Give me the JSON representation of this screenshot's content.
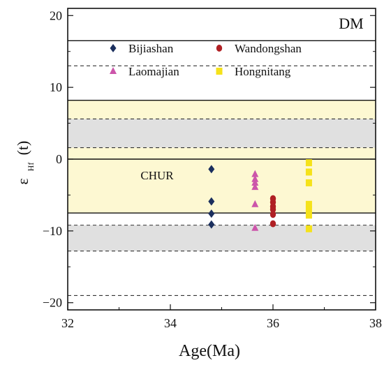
{
  "chart_data": {
    "type": "scatter",
    "title": "",
    "xlabel": "Age(Ma)",
    "ylabel_main": "ε",
    "ylabel_sub": "Hf",
    "ylabel_tail": "(t)",
    "xlim": [
      32,
      38
    ],
    "ylim": [
      -21,
      21
    ],
    "x_ticks": [
      32,
      34,
      36,
      38
    ],
    "y_ticks": [
      -20,
      -10,
      0,
      10,
      20
    ],
    "y_tick_labels": [
      "−20",
      "−10",
      "0",
      "10",
      "20"
    ],
    "grid": false,
    "legend_position": "top",
    "reference_labels": {
      "dm": "DM",
      "chur": "CHUR"
    },
    "bands": [
      {
        "y0": 0,
        "y1": 8.2,
        "color": "#fdf8d2"
      },
      {
        "y0": -7.5,
        "y1": 0,
        "color": "#fdf8d2"
      },
      {
        "y0": 1.6,
        "y1": 5.6,
        "color": "#e0e0e0"
      },
      {
        "y0": -12.8,
        "y1": -9.2,
        "color": "#e0e0e0"
      }
    ],
    "solid_lines": [
      16.5,
      8.2,
      0,
      -7.5
    ],
    "dashed_lines": [
      13,
      5.6,
      1.6,
      -9.2,
      -12.8,
      -19
    ],
    "series": [
      {
        "name": "Bijiashan",
        "marker": "diamond",
        "color": "#1b2f5e",
        "points": [
          [
            34.8,
            -1.4
          ],
          [
            34.8,
            -5.9
          ],
          [
            34.8,
            -7.6
          ],
          [
            34.8,
            -9.1
          ]
        ]
      },
      {
        "name": "Wandongshan",
        "marker": "circle",
        "color": "#b02024",
        "points": [
          [
            36.0,
            -5.5
          ],
          [
            36.0,
            -6.0
          ],
          [
            36.0,
            -6.6
          ],
          [
            36.0,
            -7.0
          ],
          [
            36.0,
            -7.7
          ],
          [
            36.0,
            -9.0
          ]
        ]
      },
      {
        "name": "Laomajian",
        "marker": "triangle",
        "color": "#cc55aa",
        "points": [
          [
            35.65,
            -2.1
          ],
          [
            35.65,
            -2.8
          ],
          [
            35.65,
            -3.3
          ],
          [
            35.65,
            -3.9
          ],
          [
            35.65,
            -6.3
          ],
          [
            35.65,
            -9.6
          ]
        ]
      },
      {
        "name": "Hongnitang",
        "marker": "square",
        "color": "#f5e21a",
        "points": [
          [
            36.7,
            -0.5
          ],
          [
            36.7,
            -1.8
          ],
          [
            36.7,
            -3.3
          ],
          [
            36.7,
            -6.3
          ],
          [
            36.7,
            -7.0
          ],
          [
            36.7,
            -7.8
          ],
          [
            36.7,
            -9.7
          ]
        ]
      }
    ]
  }
}
